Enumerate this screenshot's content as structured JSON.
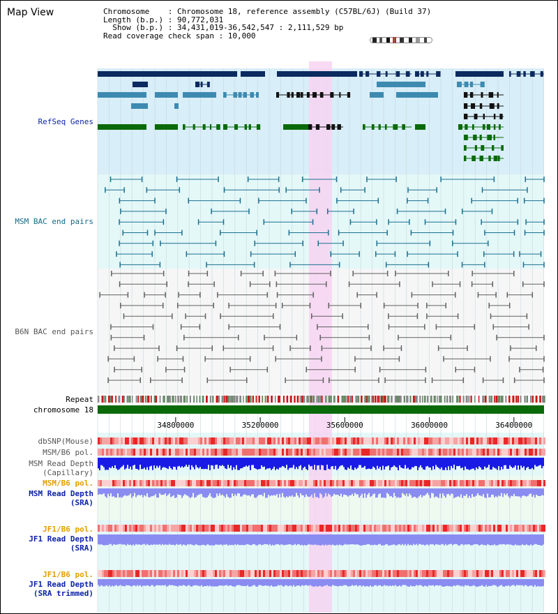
{
  "page": {
    "title": "Map View"
  },
  "header": {
    "line1": "Chromosome    : Chromosome 18, reference assembly (C57BL/6J) (Build 37)",
    "line2": "Length (b.p.) : 90,772,031",
    "line3": "  Show (b.p.) : 34,431,019-36,542,547 : 2,111,529 bp",
    "line4": "Read coverage check span : 10,000"
  },
  "tracks": {
    "refseq": "RefSeq Genes",
    "msm_bac": "MSM BAC end pairs",
    "b6n_bac": "B6N BAC end pairs",
    "repeat": "Repeat",
    "chromosome": "chromosome 18",
    "dbsnp": "dbSNP(Mouse)",
    "msm_b6_pol_1": "MSM/B6 pol.",
    "msm_read_depth_cap_1": "MSM Read Depth",
    "msm_read_depth_cap_2": "(Capillary)",
    "msm_b6_pol_2": "MSM/B6 pol.",
    "msm_read_depth_sra_1": "MSM Read Depth",
    "msm_read_depth_sra_2": "(SRA)",
    "jf1_b6_pol_1": "JF1/B6 pol.",
    "jf1_read_depth_sra_1": "JF1 Read Depth",
    "jf1_read_depth_sra_2": "(SRA)",
    "jf1_b6_pol_2": "JF1/B6 pol.",
    "jf1_read_depth_trim_1": "JF1 Read Depth",
    "jf1_read_depth_trim_2": "(SRA trimmed)"
  },
  "axis": {
    "ticks": [
      "34800000",
      "35200000",
      "35600000",
      "36000000",
      "36400000"
    ],
    "tick_values": [
      34800000,
      35200000,
      35600000,
      36000000,
      36400000
    ],
    "start": 34431019,
    "end": 36542547
  },
  "colors": {
    "refseq_bg": "#d8eef8",
    "msm_bg": "#e4f8f8",
    "b6n_bg": "#f6f6f6",
    "depth_bg": "#eefaf0",
    "highlight": "#f7d4f2",
    "gene_dark": "#0b2a60",
    "gene_mid": "#3d8ab0",
    "gene_green": "#0a6a0a",
    "msm_line": "#1a6f90",
    "b6n_line": "#606060",
    "label_blue": "#0b22a8",
    "label_teal": "#166a88",
    "label_gray": "#555555",
    "label_orange": "#e0a000",
    "depth_blue": "#1a1ae6",
    "depth_violet": "#8a8cf2"
  }
}
